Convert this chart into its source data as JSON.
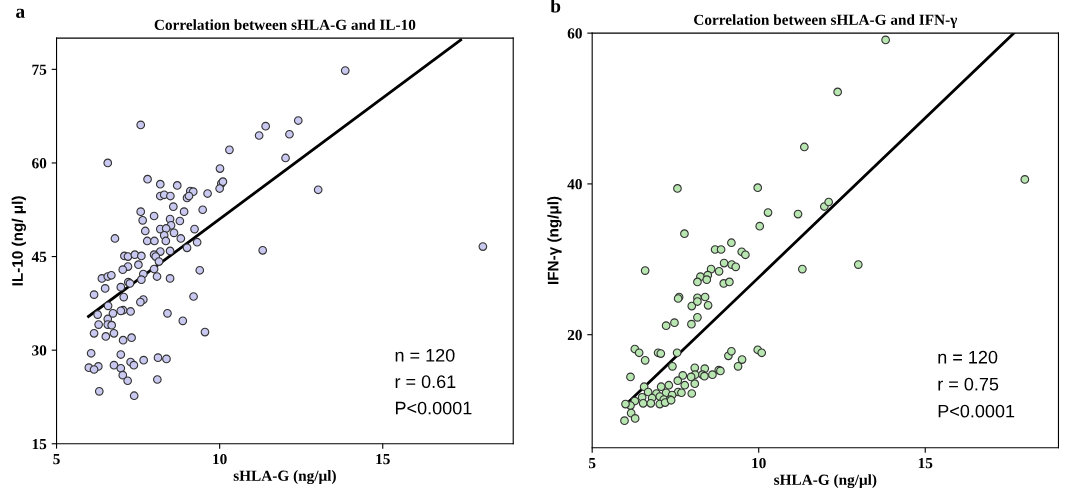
{
  "chart_data": [
    {
      "type": "scatter",
      "title": "Correlation between sHLA-G and IL-10",
      "xlabel": "sHLA-G (ng/μl)",
      "ylabel": "IL-10 (ng/ μl)",
      "xlim": [
        5,
        19
      ],
      "ylim": [
        15,
        80
      ],
      "xticks": [
        5,
        10,
        15
      ],
      "yticks": [
        15,
        30,
        45,
        60,
        75
      ],
      "grid": false,
      "annotations": [
        "a",
        "n = 120",
        "r = 0.61",
        "P<0.0001"
      ],
      "series": [
        {
          "marker": "circle",
          "color": "#c8c8f0",
          "x": [
            13.85,
            7.58,
            11.41,
            12.41,
            11.21,
            12.14,
            6.57,
            10.3,
            12.02,
            10.01,
            7.79,
            8.18,
            8.7,
            10.05,
            10.1,
            10.0,
            9.1,
            9.19,
            9.63,
            8.18,
            8.3,
            8.49,
            9.0,
            9.06,
            13.02,
            8.58,
            9.48,
            7.58,
            8.91,
            7.99,
            7.64,
            8.48,
            8.78,
            8.51,
            7.72,
            8.18,
            8.36,
            9.23,
            8.6,
            8.3,
            6.79,
            7.78,
            8.0,
            8.35,
            8.81,
            9.31,
            9.0,
            8.48,
            8.18,
            7.99,
            7.08,
            7.19,
            7.4,
            7.6,
            8.04,
            11.32,
            18.07,
            7.51,
            7.19,
            7.03,
            8.14,
            9.39,
            7.99,
            7.66,
            6.39,
            6.57,
            6.68,
            6.49,
            8.48,
            8.08,
            7.6,
            7.2,
            7.25,
            6.97,
            7.06,
            6.15,
            9.2,
            7.66,
            7.57,
            6.58,
            6.73,
            7.04,
            6.97,
            7.27,
            6.26,
            8.4,
            8.87,
            6.57,
            6.29,
            6.57,
            6.69,
            6.15,
            6.51,
            6.76,
            7.04,
            7.3,
            9.55,
            6.06,
            6.97,
            8.11,
            8.37,
            7.67,
            7.27,
            7.37,
            6.76,
            6.28,
            5.99,
            6.15,
            6.97,
            7.03,
            7.18,
            8.09,
            6.31,
            7.38
          ],
          "values": [
            74.8,
            66.1,
            65.9,
            66.8,
            64.4,
            64.6,
            60.0,
            62.1,
            60.8,
            59.1,
            57.4,
            56.6,
            56.4,
            56.7,
            57.0,
            55.9,
            55.5,
            55.4,
            55.1,
            54.7,
            54.9,
            54.7,
            54.4,
            54.7,
            55.7,
            53.0,
            52.5,
            52.2,
            52.2,
            51.5,
            50.8,
            51.0,
            50.7,
            50.0,
            49.1,
            49.4,
            49.5,
            49.4,
            48.8,
            48.4,
            47.9,
            47.5,
            47.5,
            47.5,
            47.9,
            47.3,
            46.4,
            45.9,
            45.8,
            45.3,
            45.1,
            45.0,
            45.3,
            45.1,
            45.0,
            46.0,
            46.6,
            43.7,
            43.4,
            42.9,
            44.2,
            42.8,
            43.0,
            42.2,
            41.5,
            41.8,
            42.0,
            39.9,
            41.5,
            41.8,
            41.3,
            40.9,
            40.7,
            40.1,
            38.5,
            38.9,
            38.6,
            38.1,
            37.7,
            37.1,
            35.9,
            36.4,
            36.3,
            36.2,
            35.7,
            35.9,
            34.7,
            35.0,
            34.1,
            34.1,
            34.0,
            32.7,
            32.2,
            32.7,
            31.6,
            32.0,
            32.9,
            29.5,
            29.3,
            28.8,
            28.6,
            28.4,
            28.1,
            27.6,
            27.6,
            27.4,
            27.2,
            26.9,
            27.1,
            26.0,
            25.1,
            25.3,
            23.4,
            22.7
          ]
        },
        {
          "type": "line",
          "color": "#000000",
          "x": [
            5.98,
            17.39
          ],
          "values": [
            35.4,
            79.7
          ]
        }
      ]
    },
    {
      "type": "scatter",
      "title": "Correlation between sHLA-G and IFN-γ",
      "xlabel": "sHLA-G (ng/μl)",
      "ylabel": "IFN-γ (ng/μl)",
      "xlim": [
        5,
        19
      ],
      "ylim": [
        5,
        60
      ],
      "xticks": [
        5,
        10,
        15
      ],
      "yticks": [
        20,
        40,
        60
      ],
      "grid": false,
      "annotations": [
        "b",
        "n = 120",
        "r = 0.75",
        "P<0.0001"
      ],
      "series": [
        {
          "marker": "circle",
          "color": "#b8e6b0",
          "x": [
            13.81,
            12.37,
            11.37,
            17.99,
            7.56,
            9.97,
            10.28,
            11.18,
            11.97,
            12.1,
            10.03,
            7.77,
            9.18,
            8.69,
            8.87,
            9.49,
            9.6,
            6.59,
            11.31,
            12.99,
            8.96,
            9.19,
            9.31,
            8.57,
            8.81,
            8.25,
            8.47,
            8.16,
            8.44,
            8.95,
            9.12,
            7.61,
            7.58,
            8.16,
            8.39,
            7.99,
            8.16,
            8.48,
            8.16,
            7.98,
            7.22,
            7.47,
            6.28,
            6.41,
            6.59,
            6.98,
            7.06,
            7.55,
            7.41,
            9.09,
            9.18,
            9.97,
            10.09,
            9.5,
            9.38,
            6.15,
            8.08,
            8.38,
            8.8,
            8.85,
            8.09,
            7.72,
            8.31,
            8.37,
            8.61,
            7.57,
            7.97,
            8.08,
            7.78,
            7.3,
            6.56,
            7.07,
            6.68,
            6.93,
            7.22,
            7.58,
            7.4,
            7.68,
            7.99,
            6.5,
            6.8,
            7.03,
            7.15,
            7.34,
            6.28,
            6.53,
            6.76,
            7.03,
            7.19,
            7.37,
            6.15,
            6.0,
            6.17,
            6.29,
            5.97
          ],
          "values": [
            59.1,
            52.2,
            44.9,
            40.6,
            39.4,
            39.5,
            36.2,
            36.0,
            37.0,
            37.6,
            34.4,
            33.4,
            32.2,
            31.3,
            31.3,
            31.0,
            30.6,
            28.5,
            28.7,
            29.3,
            29.5,
            29.3,
            29.0,
            28.7,
            28.4,
            27.7,
            27.9,
            27.0,
            27.3,
            26.8,
            27.0,
            25.0,
            24.8,
            24.9,
            25.0,
            23.8,
            24.4,
            23.9,
            22.3,
            21.4,
            21.2,
            21.6,
            18.1,
            17.6,
            16.6,
            17.6,
            17.5,
            17.6,
            15.8,
            17.2,
            17.8,
            18.0,
            17.6,
            16.7,
            15.8,
            14.4,
            15.6,
            15.5,
            15.3,
            15.2,
            14.7,
            14.6,
            14.7,
            14.5,
            14.7,
            13.9,
            14.4,
            13.5,
            13.3,
            13.3,
            13.1,
            13.1,
            12.4,
            12.2,
            12.3,
            12.4,
            12.0,
            12.3,
            12.2,
            11.7,
            11.6,
            11.8,
            11.4,
            11.4,
            11.2,
            10.9,
            10.9,
            10.8,
            11.0,
            11.3,
            10.6,
            10.8,
            9.6,
            8.9,
            8.6
          ]
        },
        {
          "type": "line",
          "color": "#000000",
          "x": [
            5.98,
            17.66
          ],
          "values": [
            10.6,
            60.0
          ]
        }
      ]
    }
  ]
}
